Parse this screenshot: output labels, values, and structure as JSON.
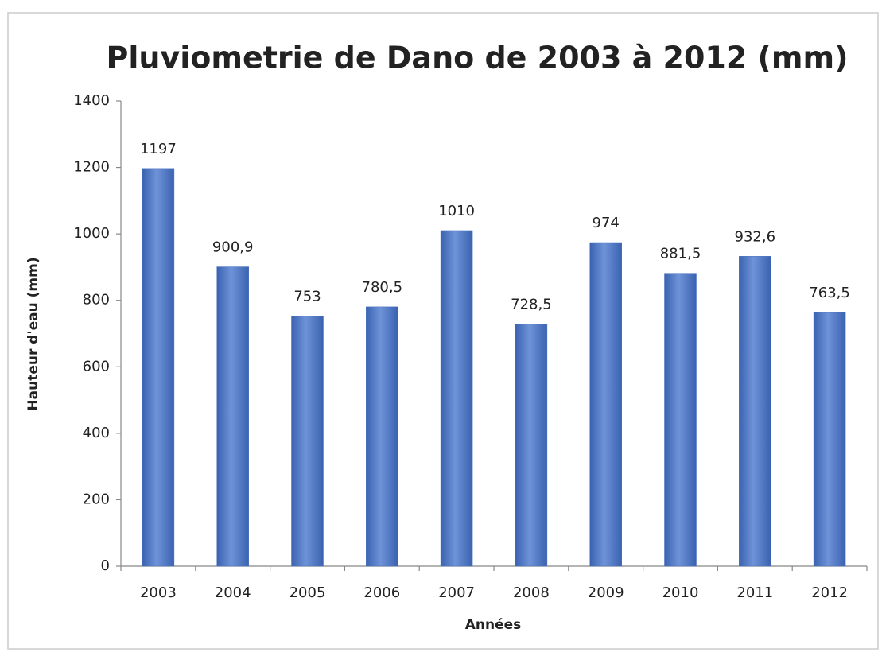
{
  "chart_data": {
    "type": "bar",
    "title": "Pluviometrie de Dano de 2003 à 2012 (mm)",
    "x_label": "Années",
    "y_label": "Hauteur d'eau (mm)",
    "categories": [
      "2003",
      "2004",
      "2005",
      "2006",
      "2007",
      "2008",
      "2009",
      "2010",
      "2011",
      "2012"
    ],
    "values": [
      1197,
      900.9,
      753,
      780.5,
      1010,
      728.5,
      974,
      881.5,
      932.6,
      763.5
    ],
    "value_labels": [
      "1197",
      "900,9",
      "753",
      "780,5",
      "1010",
      "728,5",
      "974",
      "881,5",
      "932,6",
      "763,5"
    ],
    "color": "#4a72c0",
    "ylim": [
      0,
      1400
    ],
    "yticks": [
      0,
      200,
      400,
      600,
      800,
      1000,
      1200,
      1400
    ],
    "grid": false
  }
}
